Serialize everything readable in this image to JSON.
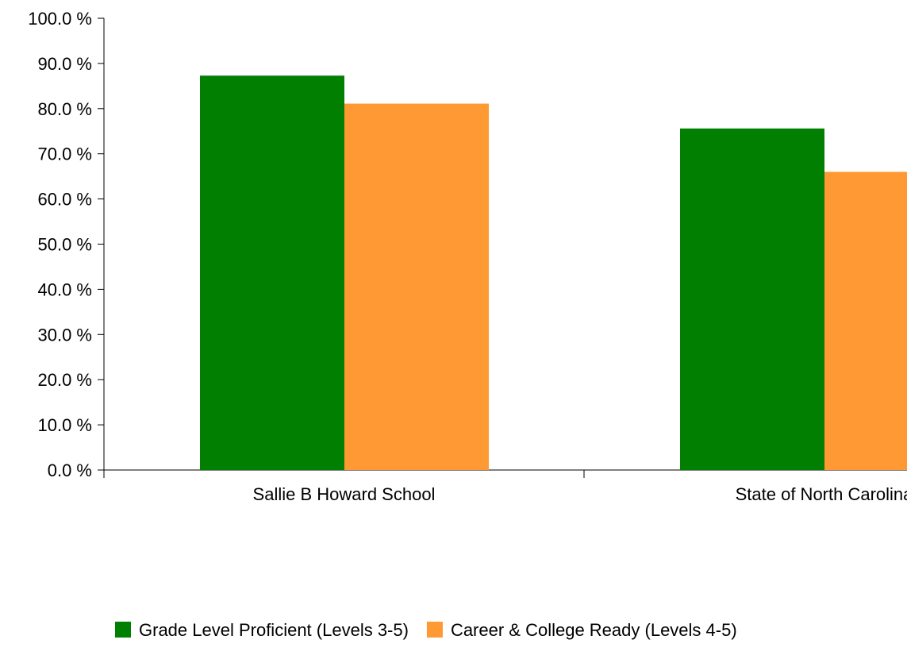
{
  "chart_data": {
    "type": "bar",
    "title": "",
    "xlabel": "",
    "ylabel": "",
    "ylim": [
      0,
      100
    ],
    "yticks": [
      "0.0 %",
      "10.0 %",
      "20.0 %",
      "30.0 %",
      "40.0 %",
      "50.0 %",
      "60.0 %",
      "70.0 %",
      "80.0 %",
      "90.0 %",
      "100.0 %"
    ],
    "categories": [
      "Sallie B Howard School",
      "State of North Carolina"
    ],
    "series": [
      {
        "name": "Grade Level Proficient (Levels 3-5)",
        "color": "#007f00",
        "values": [
          87.3,
          75.6
        ]
      },
      {
        "name": "Career & College Ready (Levels 4-5)",
        "color": "#ff9933",
        "values": [
          81.1,
          66.0
        ]
      }
    ],
    "grid": false,
    "legend_position": "bottom"
  }
}
